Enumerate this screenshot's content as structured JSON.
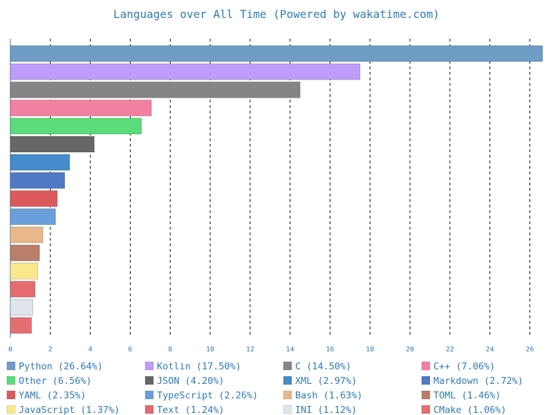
{
  "chart_data": {
    "type": "bar",
    "orientation": "horizontal",
    "title": "Languages over All Time (Powered by wakatime.com)",
    "xlim": [
      0,
      26.64
    ],
    "x_ticks": [
      0,
      2,
      4,
      6,
      8,
      10,
      12,
      14,
      16,
      18,
      20,
      22,
      24,
      26
    ],
    "grid": "vertical dashed",
    "legend_position": "bottom",
    "categories": [
      "Python",
      "Kotlin",
      "C",
      "C++",
      "Other",
      "JSON",
      "XML",
      "Markdown",
      "YAML",
      "TypeScript",
      "Bash",
      "TOML",
      "JavaScript",
      "Text",
      "INI",
      "CMake"
    ],
    "values": [
      26.64,
      17.5,
      14.5,
      7.06,
      6.56,
      4.2,
      2.97,
      2.72,
      2.35,
      2.26,
      1.63,
      1.46,
      1.37,
      1.24,
      1.12,
      1.06
    ],
    "legend_labels": [
      "Python (26.64%)",
      "Kotlin (17.50%)",
      "C (14.50%)",
      "C++ (7.06%)",
      "Other (6.56%)",
      "JSON (4.20%)",
      "XML (2.97%)",
      "Markdown (2.72%)",
      "YAML (2.35%)",
      "TypeScript (2.26%)",
      "Bash (1.63%)",
      "TOML (1.46%)",
      "JavaScript (1.37%)",
      "Text (1.24%)",
      "INI (1.12%)",
      "CMake (1.06%)"
    ],
    "colors": [
      "#6f9dc6",
      "#bd9cfb",
      "#858585",
      "#f37fa1",
      "#59dc79",
      "#666666",
      "#448ccb",
      "#4f7ac3",
      "#dc5a5e",
      "#6a9fdb",
      "#e9b88a",
      "#b97f68",
      "#f9e98c",
      "#e56b6f",
      "#dfe6eb",
      "#e56e71"
    ]
  }
}
